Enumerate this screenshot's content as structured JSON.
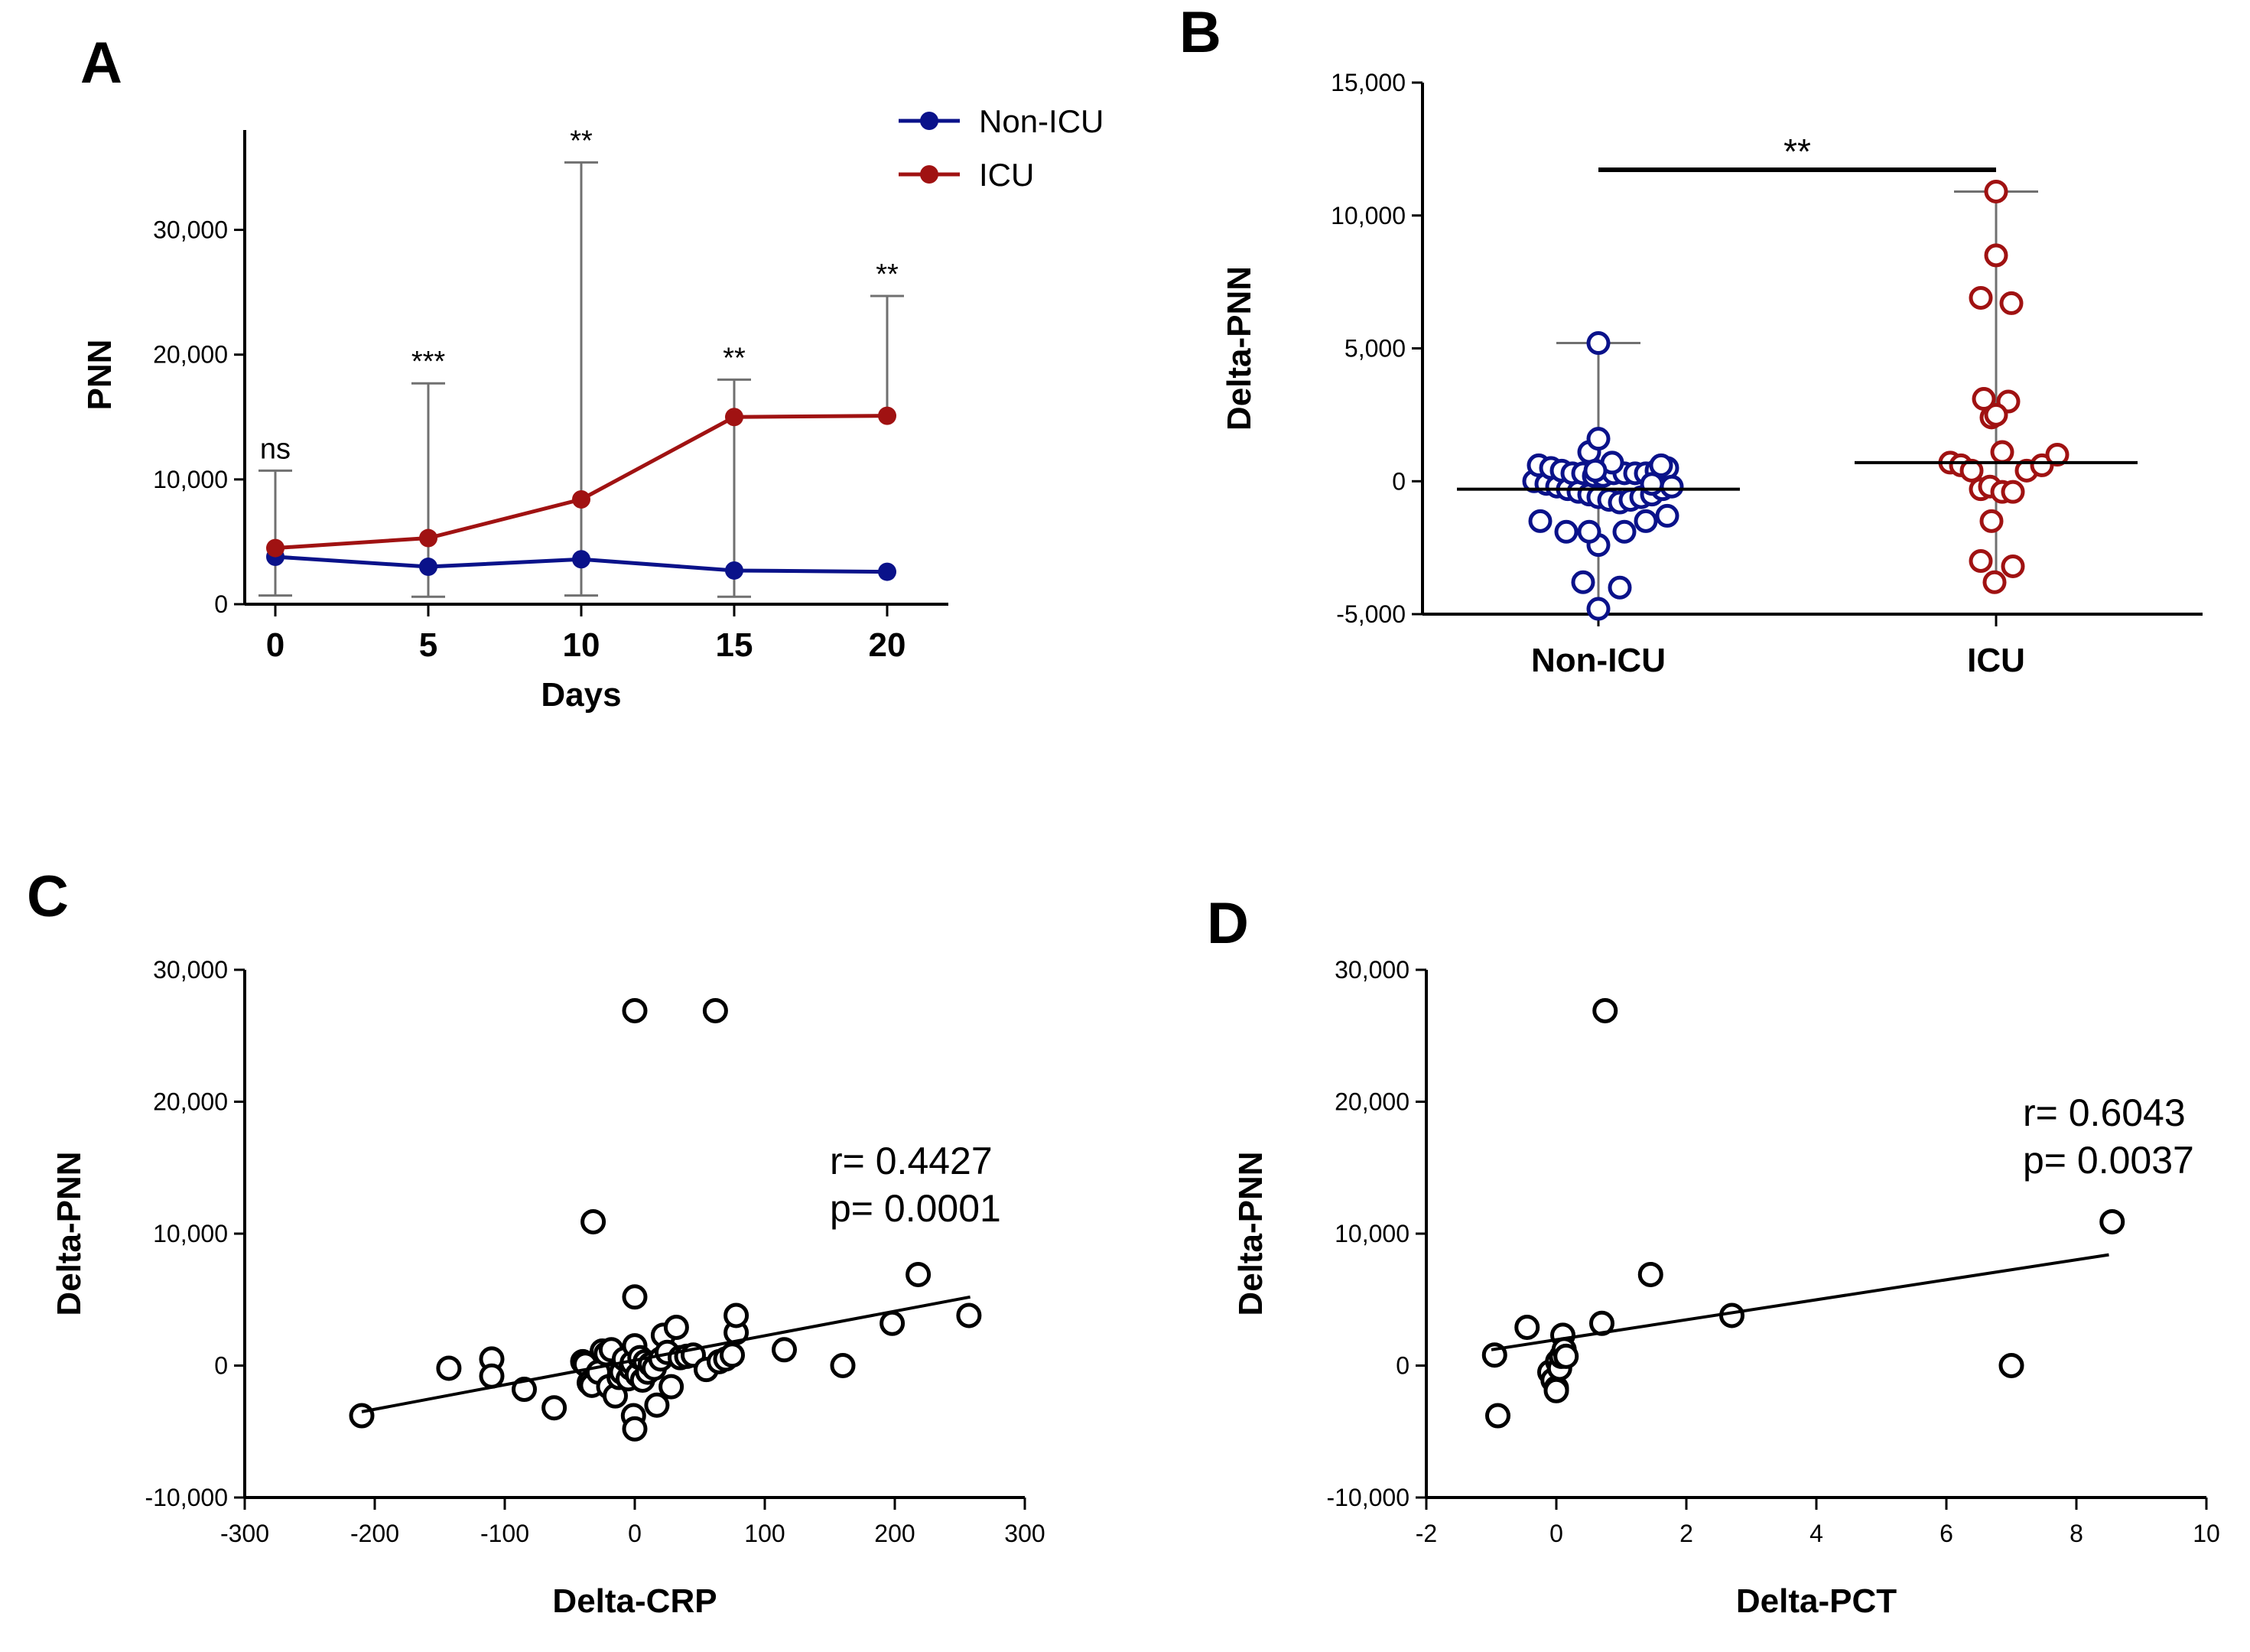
{
  "colors": {
    "non_icu": "#0a128a",
    "icu": "#a01212",
    "black": "#000000",
    "error_bar": "#707070"
  },
  "chart_data": [
    {
      "panel": "A",
      "type": "line",
      "xlabel": "Days",
      "ylabel": "PNN",
      "x": [
        0,
        5,
        10,
        15,
        20
      ],
      "xticks": [
        "0",
        "5",
        "10",
        "15",
        "20"
      ],
      "ylim": [
        0,
        38000
      ],
      "yticks": [
        0,
        10000,
        20000,
        30000
      ],
      "ytick_labels": [
        "0",
        "10,000",
        "20,000",
        "30,000"
      ],
      "legend": {
        "position": "top-right",
        "entries": [
          "Non-ICU",
          "ICU"
        ]
      },
      "series": [
        {
          "name": "Non-ICU",
          "values": [
            3800,
            3000,
            3600,
            2700,
            2600
          ]
        },
        {
          "name": "ICU",
          "values": [
            4500,
            5300,
            8400,
            15000,
            15100
          ]
        }
      ],
      "error_bars": {
        "lower": [
          700,
          600,
          700,
          600,
          null
        ],
        "upper": [
          10700,
          17700,
          35400,
          18000,
          24700
        ]
      },
      "significance": [
        "ns",
        "***",
        "**",
        "**",
        "**"
      ]
    },
    {
      "panel": "B",
      "type": "scatter",
      "ylabel": "Delta-PNN",
      "categories": [
        "Non-ICU",
        "ICU"
      ],
      "ylim": [
        -5000,
        15000
      ],
      "yticks": [
        -5000,
        0,
        5000,
        10000,
        15000
      ],
      "ytick_labels": [
        "-5,000",
        "0",
        "5,000",
        "10,000",
        "15,000"
      ],
      "significance": "**",
      "groups": [
        {
          "name": "Non-ICU",
          "median": -300,
          "range": [
            -4800,
            5200
          ],
          "points": [
            [
              -0.42,
              0
            ],
            [
              -0.39,
              600
            ],
            [
              -0.34,
              -100
            ],
            [
              -0.31,
              500
            ],
            [
              -0.27,
              -200
            ],
            [
              -0.24,
              400
            ],
            [
              -0.2,
              -300
            ],
            [
              -0.17,
              300
            ],
            [
              -0.13,
              -400
            ],
            [
              -0.1,
              300
            ],
            [
              -0.06,
              -500
            ],
            [
              -0.03,
              200
            ],
            [
              0.0,
              -600
            ],
            [
              0.03,
              200
            ],
            [
              0.07,
              -700
            ],
            [
              0.1,
              300
            ],
            [
              0.14,
              -800
            ],
            [
              0.17,
              300
            ],
            [
              0.21,
              -700
            ],
            [
              0.24,
              300
            ],
            [
              0.28,
              -600
            ],
            [
              0.31,
              300
            ],
            [
              0.35,
              -500
            ],
            [
              0.38,
              400
            ],
            [
              0.42,
              -300
            ],
            [
              0.45,
              500
            ],
            [
              -0.06,
              1100
            ],
            [
              0.0,
              1600
            ],
            [
              0.09,
              700
            ],
            [
              0.35,
              -100
            ],
            [
              0.48,
              -200
            ],
            [
              0.41,
              600
            ],
            [
              0.0,
              5200
            ],
            [
              -0.38,
              -1500
            ],
            [
              -0.21,
              -1900
            ],
            [
              0.0,
              -2400
            ],
            [
              -0.06,
              -1900
            ],
            [
              0.17,
              -1900
            ],
            [
              0.31,
              -1500
            ],
            [
              0.45,
              -1300
            ],
            [
              -0.1,
              -3800
            ],
            [
              0.14,
              -4000
            ],
            [
              0.0,
              -4800
            ],
            [
              -0.02,
              400
            ]
          ]
        },
        {
          "name": "ICU",
          "median": 700,
          "range": [
            -3800,
            10900
          ],
          "points": [
            [
              0.0,
              10900
            ],
            [
              0.0,
              8500
            ],
            [
              -0.1,
              6900
            ],
            [
              0.1,
              6700
            ],
            [
              -0.08,
              3100
            ],
            [
              0.08,
              3000
            ],
            [
              -0.03,
              2400
            ],
            [
              0.0,
              2500
            ],
            [
              0.04,
              1100
            ],
            [
              -0.3,
              700
            ],
            [
              -0.23,
              600
            ],
            [
              -0.16,
              400
            ],
            [
              -0.1,
              -300
            ],
            [
              -0.04,
              -200
            ],
            [
              0.04,
              -400
            ],
            [
              0.11,
              -400
            ],
            [
              0.2,
              400
            ],
            [
              0.3,
              600
            ],
            [
              0.4,
              1000
            ],
            [
              -0.03,
              -1500
            ],
            [
              -0.1,
              -3000
            ],
            [
              -0.01,
              -3800
            ],
            [
              0.11,
              -3200
            ]
          ]
        }
      ]
    },
    {
      "panel": "C",
      "type": "scatter",
      "xlabel": "Delta-CRP",
      "ylabel": "Delta-PNN",
      "xlim": [
        -300,
        300
      ],
      "xticks": [
        -300,
        -200,
        -100,
        0,
        100,
        200,
        300
      ],
      "xtick_labels": [
        "-300",
        "-200",
        "-100",
        "0",
        "100",
        "200",
        "300"
      ],
      "ylim": [
        -10000,
        30000
      ],
      "yticks": [
        -10000,
        0,
        10000,
        20000,
        30000
      ],
      "ytick_labels": [
        "-10,000",
        "0",
        "10,000",
        "20,000",
        "30,000"
      ],
      "annotation": {
        "r": "r= 0.4427",
        "p": "p= 0.0001"
      },
      "fit_line": {
        "x": [
          -210,
          258
        ],
        "y": [
          -3500,
          5200
        ]
      },
      "points": [
        [
          -210,
          -3800
        ],
        [
          -143,
          -200
        ],
        [
          -110,
          500
        ],
        [
          -110,
          -800
        ],
        [
          -85,
          -1800
        ],
        [
          -62,
          -3200
        ],
        [
          -40,
          300
        ],
        [
          -38,
          100
        ],
        [
          -35,
          -1300
        ],
        [
          -33,
          -1500
        ],
        [
          -32,
          10900
        ],
        [
          -28,
          -500
        ],
        [
          -25,
          1100
        ],
        [
          -22,
          900
        ],
        [
          -20,
          -1600
        ],
        [
          -18,
          1200
        ],
        [
          -15,
          -2300
        ],
        [
          -12,
          -900
        ],
        [
          -10,
          -500
        ],
        [
          -8,
          500
        ],
        [
          -5,
          -1000
        ],
        [
          -3,
          -200
        ],
        [
          -2,
          200
        ],
        [
          -1,
          -3800
        ],
        [
          0,
          -4800
        ],
        [
          0,
          5200
        ],
        [
          0,
          26900
        ],
        [
          0,
          1500
        ],
        [
          2,
          -700
        ],
        [
          4,
          600
        ],
        [
          6,
          -1100
        ],
        [
          8,
          300
        ],
        [
          10,
          -500
        ],
        [
          12,
          100
        ],
        [
          15,
          -200
        ],
        [
          17,
          -3000
        ],
        [
          20,
          500
        ],
        [
          22,
          2300
        ],
        [
          25,
          1000
        ],
        [
          28,
          -1600
        ],
        [
          32,
          2900
        ],
        [
          35,
          600
        ],
        [
          40,
          700
        ],
        [
          45,
          800
        ],
        [
          55,
          -300
        ],
        [
          65,
          300
        ],
        [
          70,
          500
        ],
        [
          75,
          800
        ],
        [
          78,
          2500
        ],
        [
          78,
          3800
        ],
        [
          115,
          1200
        ],
        [
          160,
          0
        ],
        [
          198,
          3200
        ],
        [
          218,
          6900
        ],
        [
          257,
          3800
        ],
        [
          62,
          26900
        ]
      ]
    },
    {
      "panel": "D",
      "type": "scatter",
      "xlabel": "Delta-PCT",
      "ylabel": "Delta-PNN",
      "xlim": [
        -2,
        10
      ],
      "xticks": [
        -2,
        0,
        2,
        4,
        6,
        8,
        10
      ],
      "xtick_labels": [
        "-2",
        "0",
        "2",
        "4",
        "6",
        "8",
        "10"
      ],
      "ylim": [
        -10000,
        30000
      ],
      "yticks": [
        -10000,
        0,
        10000,
        20000,
        30000
      ],
      "ytick_labels": [
        "-10,000",
        "0",
        "10,000",
        "20,000",
        "30,000"
      ],
      "annotation": {
        "r": "r= 0.6043",
        "p": "p= 0.0037"
      },
      "fit_line": {
        "x": [
          -1.0,
          8.5
        ],
        "y": [
          1200,
          8400
        ]
      },
      "points": [
        [
          -0.95,
          800
        ],
        [
          -0.9,
          -3800
        ],
        [
          -0.45,
          2900
        ],
        [
          -0.1,
          -500
        ],
        [
          -0.05,
          -1100
        ],
        [
          0,
          -1700
        ],
        [
          0,
          -1900
        ],
        [
          0.02,
          300
        ],
        [
          0.05,
          -200
        ],
        [
          0.08,
          700
        ],
        [
          0.1,
          2300
        ],
        [
          0.12,
          1200
        ],
        [
          0.15,
          700
        ],
        [
          0.7,
          3200
        ],
        [
          0.75,
          26900
        ],
        [
          1.45,
          6900
        ],
        [
          2.7,
          3800
        ],
        [
          7.0,
          0
        ],
        [
          8.55,
          10900
        ]
      ]
    }
  ]
}
